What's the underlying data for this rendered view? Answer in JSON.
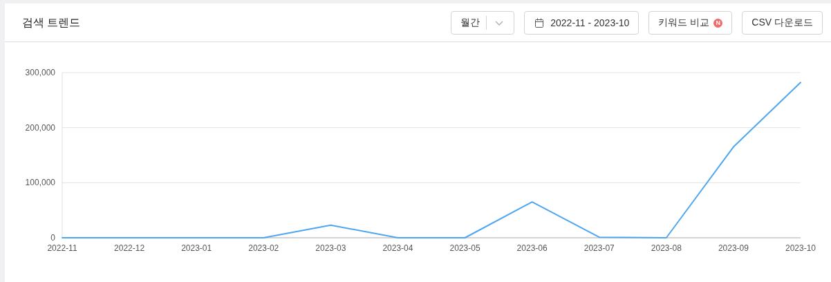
{
  "chart_data": {
    "type": "line",
    "title": "검색 트렌드",
    "annotations": [
      "월간",
      "2022-11 - 2023-10",
      "키워드 비교",
      "N",
      "CSV 다운로드"
    ],
    "categories": [
      "2022-11",
      "2022-12",
      "2023-01",
      "2023-02",
      "2023-03",
      "2023-04",
      "2023-05",
      "2023-06",
      "2023-07",
      "2023-08",
      "2023-09",
      "2023-10"
    ],
    "series": [
      {
        "color": "#4ea6f1",
        "values": [
          0,
          0,
          0,
          0,
          23000,
          0,
          0,
          65000,
          1000,
          0,
          165000,
          282000
        ]
      }
    ],
    "ylim": [
      0,
      300000
    ],
    "yticks": [
      0,
      {
        "value": 100000,
        "label": "100,000"
      },
      {
        "value": 200000,
        "label": "200,000"
      },
      {
        "value": 300000,
        "label": "300,000"
      }
    ],
    "grid": "y"
  }
}
